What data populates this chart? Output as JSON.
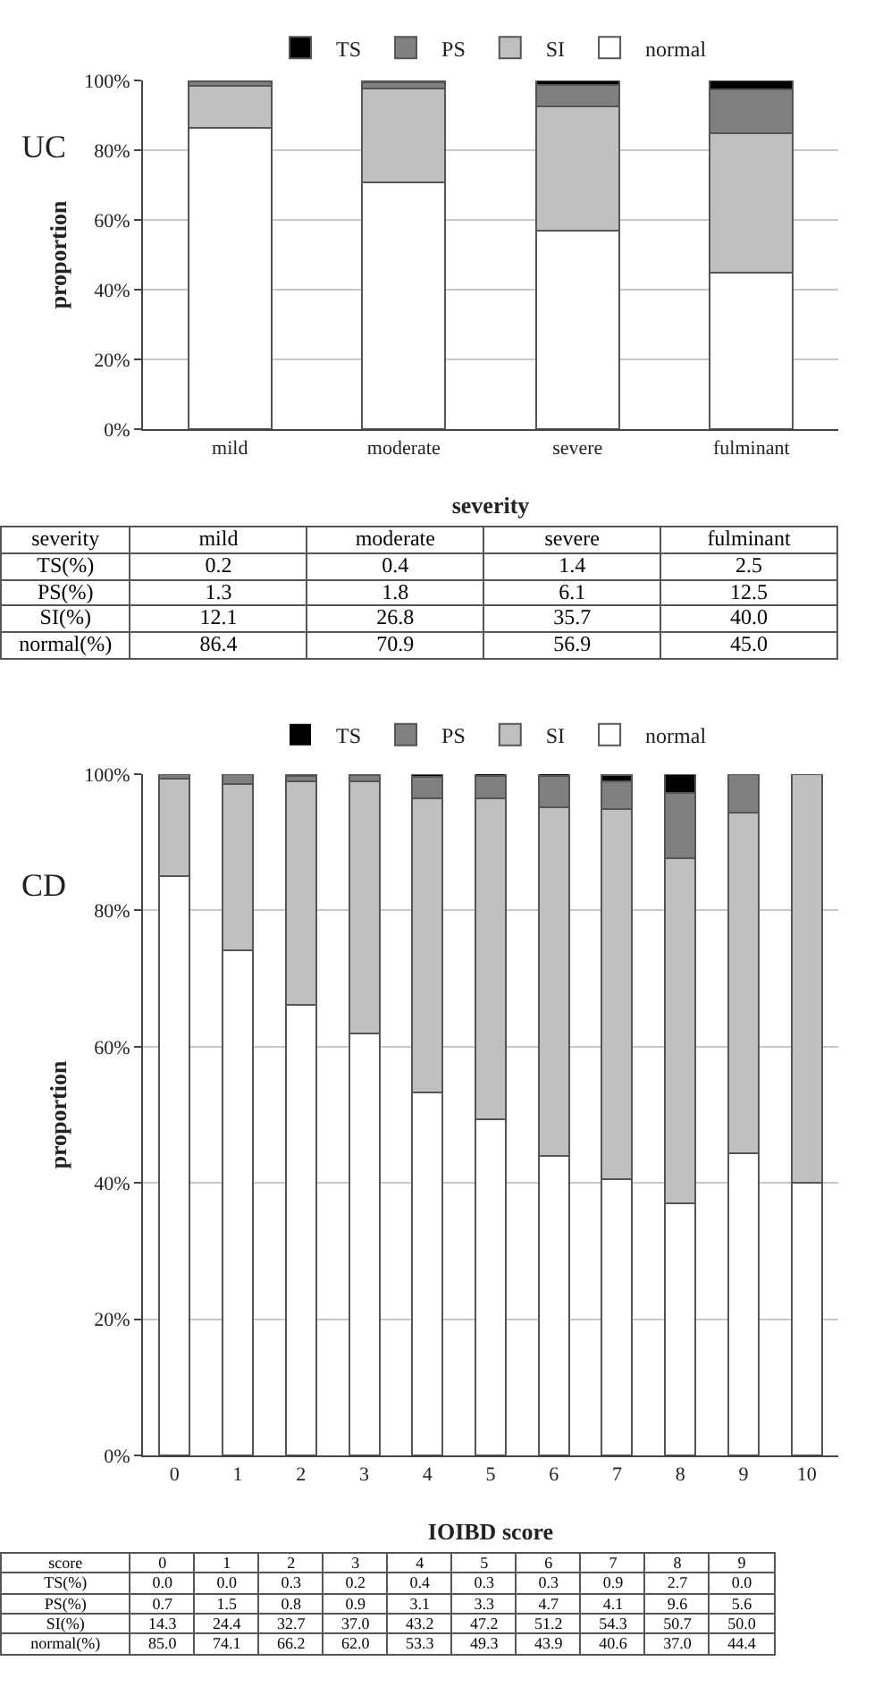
{
  "chart_data": [
    {
      "type": "bar",
      "stacked": true,
      "xlabel": "severity",
      "ylabel": "proportion",
      "annotations": [
        "UC",
        "severity",
        "TS(%)",
        "PS(%)",
        "SI(%)",
        "normal(%)"
      ],
      "categories": [
        "mild",
        "moderate",
        "severe",
        "fulminant"
      ],
      "ylim": [
        0,
        100
      ],
      "yticks": [
        {
          "value": 0,
          "label": "0%"
        },
        {
          "value": 20,
          "label": "20%"
        },
        {
          "value": 40,
          "label": "40%"
        },
        {
          "value": 60,
          "label": "60%"
        },
        {
          "value": 80,
          "label": "80%"
        },
        {
          "value": 100,
          "label": "100%"
        }
      ],
      "grid": "y",
      "legend": "top",
      "series": [
        {
          "name": "normal",
          "color": "#ffffff",
          "values": [
            86.4,
            70.9,
            56.9,
            45.0
          ],
          "value_labels": [
            "86.4",
            "70.9",
            "56.9",
            "45.0"
          ]
        },
        {
          "name": "SI",
          "color": "#c0c0c0",
          "values": [
            12.1,
            26.8,
            35.7,
            40.0
          ],
          "value_labels": [
            "12.1",
            "26.8",
            "35.7",
            "40.0"
          ]
        },
        {
          "name": "PS",
          "color": "#808080",
          "values": [
            1.3,
            1.8,
            6.1,
            12.5
          ],
          "value_labels": [
            "1.3",
            "1.8",
            "6.1",
            "12.5"
          ]
        },
        {
          "name": "TS",
          "color": "#000000",
          "values": [
            0.2,
            0.4,
            1.4,
            2.5
          ],
          "value_labels": [
            "0.2",
            "0.4",
            "1.4",
            "2.5"
          ]
        }
      ]
    },
    {
      "type": "bar",
      "stacked": true,
      "xlabel": "IOIBD score",
      "ylabel": "proportion",
      "annotations": [
        "CD",
        "score",
        "TS(%)",
        "PS(%)",
        "SI(%)",
        "normal(%)"
      ],
      "categories": [
        "0",
        "1",
        "2",
        "3",
        "4",
        "5",
        "6",
        "7",
        "8",
        "9",
        "10"
      ],
      "ylim": [
        0,
        100
      ],
      "yticks": [
        {
          "value": 0,
          "label": "0%"
        },
        {
          "value": 20,
          "label": "20%"
        },
        {
          "value": 40,
          "label": "40%"
        },
        {
          "value": 60,
          "label": "60%"
        },
        {
          "value": 80,
          "label": "80%"
        },
        {
          "value": 100,
          "label": "100%"
        }
      ],
      "grid": "y",
      "legend": "top",
      "series": [
        {
          "name": "normal",
          "color": "#ffffff",
          "values": [
            85.0,
            74.1,
            66.2,
            62.0,
            53.3,
            49.3,
            43.9,
            40.6,
            37.0,
            44.4,
            40
          ],
          "value_labels": [
            "85.0",
            "74.1",
            "66.2",
            "62.0",
            "53.3",
            "49.3",
            "43.9",
            "40.6",
            "37.0",
            "44.4",
            null
          ]
        },
        {
          "name": "SI",
          "color": "#c0c0c0",
          "values": [
            14.3,
            24.4,
            32.7,
            37.0,
            43.2,
            47.2,
            51.2,
            54.3,
            50.7,
            50.0,
            60
          ],
          "value_labels": [
            "14.3",
            "24.4",
            "32.7",
            "37.0",
            "43.2",
            "47.2",
            "51.2",
            "54.3",
            "50.7",
            "50.0",
            null
          ]
        },
        {
          "name": "PS",
          "color": "#808080",
          "values": [
            0.7,
            1.5,
            0.8,
            0.9,
            3.1,
            3.3,
            4.7,
            4.1,
            9.6,
            5.6,
            0
          ],
          "value_labels": [
            "0.7",
            "1.5",
            "0.8",
            "0.9",
            "3.1",
            "3.3",
            "4.7",
            "4.1",
            "9.6",
            "5.6",
            null
          ]
        },
        {
          "name": "TS",
          "color": "#000000",
          "values": [
            0.0,
            0.0,
            0.3,
            0.2,
            0.4,
            0.3,
            0.3,
            0.9,
            2.7,
            0.0,
            0
          ],
          "value_labels": [
            "0.0",
            "0.0",
            "0.3",
            "0.2",
            "0.4",
            "0.3",
            "0.3",
            "0.9",
            "2.7",
            "0.0",
            null
          ]
        }
      ]
    }
  ]
}
